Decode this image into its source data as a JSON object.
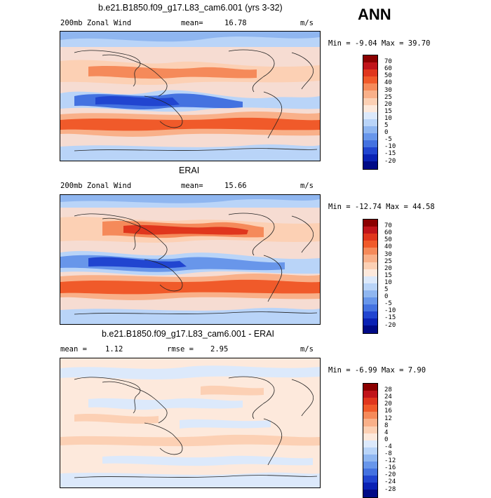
{
  "season": "ANN",
  "colors": {
    "land_line": "#222222",
    "panel_border": "#000000"
  },
  "panels": [
    {
      "id": "model",
      "title": "b.e21.B1850.f09_g17.L83_cam6.001 (yrs 3-32)",
      "left_label": "200mb Zonal Wind",
      "stat_label": "mean=",
      "stat_value": "16.78",
      "units": "m/s",
      "minmax": "Min =  -9.04 Max =  39.70",
      "colorbar": {
        "labels": [
          "70",
          "60",
          "50",
          "40",
          "30",
          "25",
          "20",
          "15",
          "10",
          "5",
          "0",
          "-5",
          "-10",
          "-15",
          "-20"
        ],
        "colors": [
          "#8b0000",
          "#c0141a",
          "#e0361d",
          "#f05a2a",
          "#f58a5a",
          "#f9b089",
          "#fcd0b4",
          "#fde9dc",
          "#dce9fb",
          "#b9d4f8",
          "#8fb6f0",
          "#6896ea",
          "#4472e0",
          "#2145d0",
          "#0a22b4",
          "#000a86"
        ]
      }
    },
    {
      "id": "obs",
      "title": "ERAI",
      "left_label": "200mb Zonal Wind",
      "stat_label": "mean=",
      "stat_value": "15.66",
      "units": "m/s",
      "minmax": "Min = -12.74 Max =  44.58",
      "colorbar": {
        "labels": [
          "70",
          "60",
          "50",
          "40",
          "30",
          "25",
          "20",
          "15",
          "10",
          "5",
          "0",
          "-5",
          "-10",
          "-15",
          "-20"
        ],
        "colors": [
          "#8b0000",
          "#c0141a",
          "#e0361d",
          "#f05a2a",
          "#f58a5a",
          "#f9b089",
          "#fcd0b4",
          "#fde9dc",
          "#dce9fb",
          "#b9d4f8",
          "#8fb6f0",
          "#6896ea",
          "#4472e0",
          "#2145d0",
          "#0a22b4",
          "#000a86"
        ]
      }
    },
    {
      "id": "diff",
      "title": "b.e21.B1850.f09_g17.L83_cam6.001 - ERAI",
      "left_label": "mean =",
      "left_value": "1.12",
      "stat_label": "rmse =",
      "stat_value": "2.95",
      "units": "m/s",
      "minmax": "Min =  -6.99 Max =   7.90",
      "colorbar": {
        "labels": [
          "28",
          "24",
          "20",
          "16",
          "12",
          "8",
          "4",
          "0",
          "-4",
          "-8",
          "-12",
          "-16",
          "-20",
          "-24",
          "-28"
        ],
        "colors": [
          "#8b0000",
          "#c0141a",
          "#e0361d",
          "#f05a2a",
          "#f58a5a",
          "#f9b089",
          "#fcd0b4",
          "#fde9dc",
          "#dce9fb",
          "#b9d4f8",
          "#8fb6f0",
          "#6896ea",
          "#4472e0",
          "#2145d0",
          "#0a22b4",
          "#000a86"
        ]
      }
    }
  ]
}
